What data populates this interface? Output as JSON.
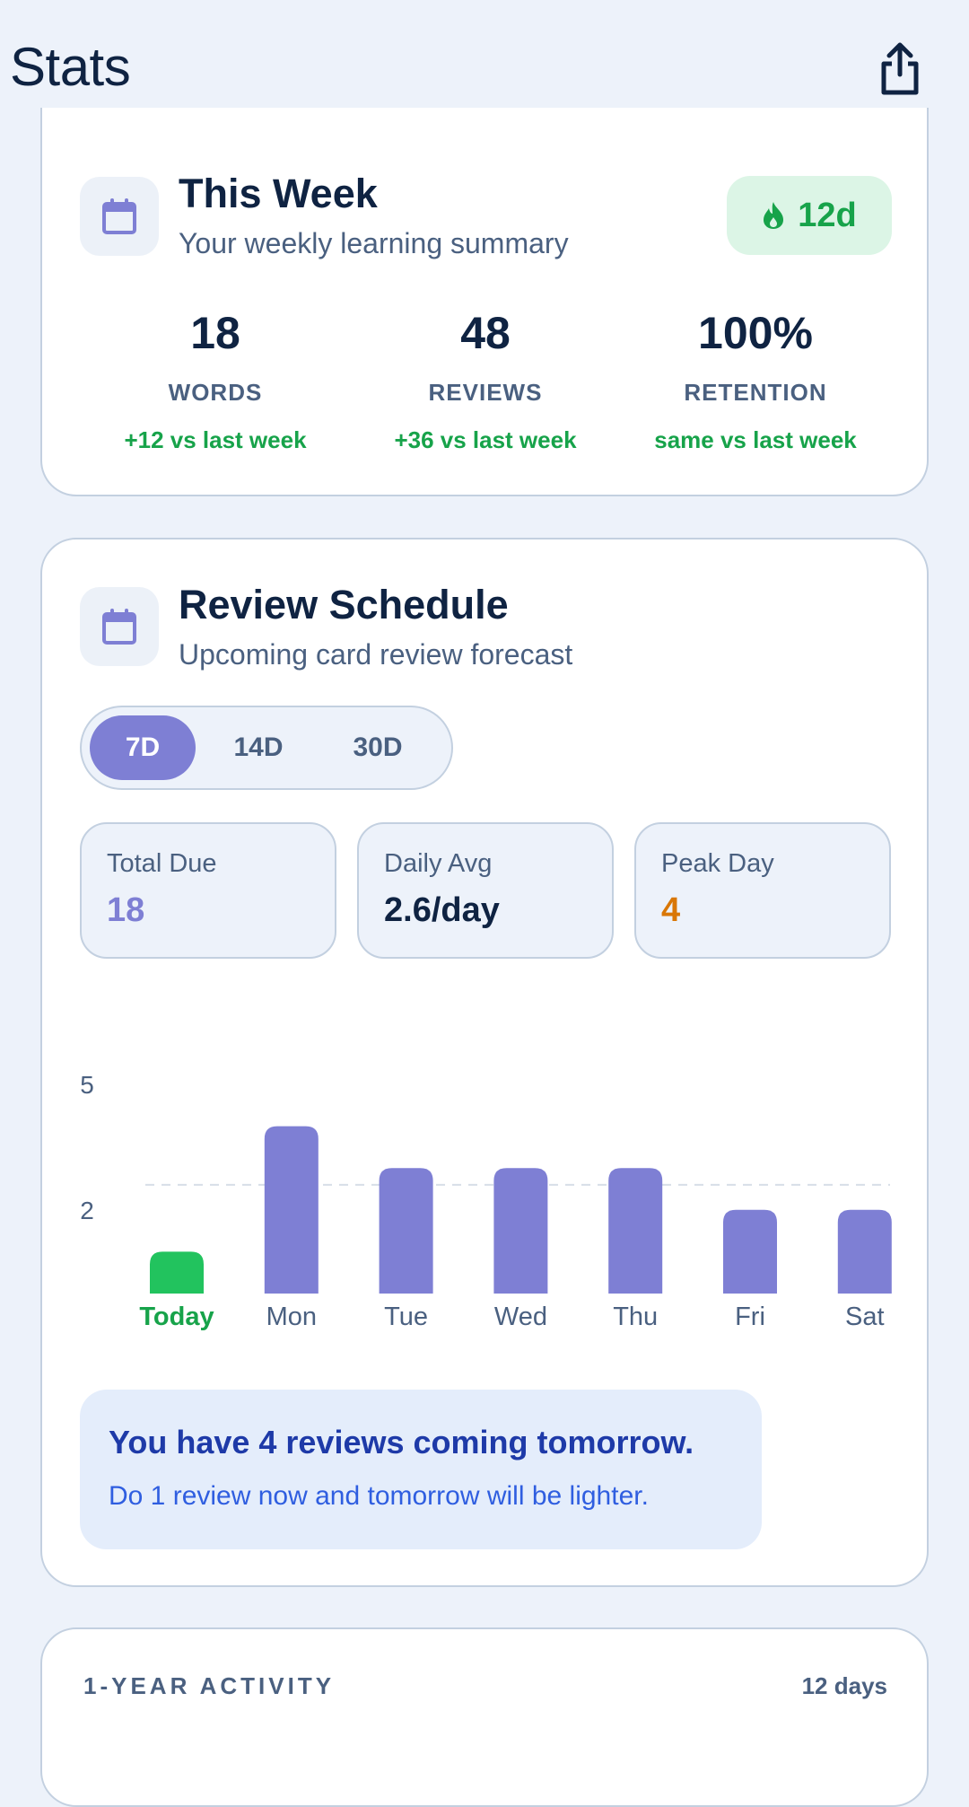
{
  "header": {
    "title": "Stats",
    "share_icon": "share-icon"
  },
  "week": {
    "title": "This Week",
    "subtitle": "Your weekly learning summary",
    "icon": "calendar-icon",
    "streak": {
      "icon": "flame-icon",
      "value": "12d"
    },
    "stats": [
      {
        "value": "18",
        "label": "WORDS",
        "delta": "+12 vs last week"
      },
      {
        "value": "48",
        "label": "REVIEWS",
        "delta": "+36 vs last week"
      },
      {
        "value": "100%",
        "label": "RETENTION",
        "delta": "same vs last week"
      }
    ]
  },
  "schedule": {
    "title": "Review Schedule",
    "subtitle": "Upcoming card review forecast",
    "icon": "calendar-icon",
    "ranges": [
      "7D",
      "14D",
      "30D"
    ],
    "selected_range": "7D",
    "metrics": [
      {
        "label": "Total Due",
        "value": "18",
        "color": "#7e7fd4"
      },
      {
        "label": "Daily Avg",
        "value": "2.6/day",
        "color": "#0f2342"
      },
      {
        "label": "Peak Day",
        "value": "4",
        "color": "#d97706"
      }
    ],
    "tip": {
      "title": "You have 4 reviews coming tomorrow.",
      "body": "Do 1 review now and tomorrow will be lighter."
    }
  },
  "chart_data": {
    "type": "bar",
    "categories": [
      "Today",
      "Mon",
      "Tue",
      "Wed",
      "Thu",
      "Fri",
      "Sat"
    ],
    "values": [
      1,
      4,
      3,
      3,
      3,
      2,
      2
    ],
    "ylim": [
      0,
      5
    ],
    "y_ticks": [
      5,
      2
    ],
    "reference_line": 2.6,
    "colors": {
      "today": "#22c35e",
      "default": "#7e7fd4",
      "today_label": "#17a34a",
      "label": "#4a6080"
    },
    "title": "",
    "xlabel": "",
    "ylabel": ""
  },
  "activity": {
    "title": "1-YEAR ACTIVITY",
    "count": "12 days"
  }
}
